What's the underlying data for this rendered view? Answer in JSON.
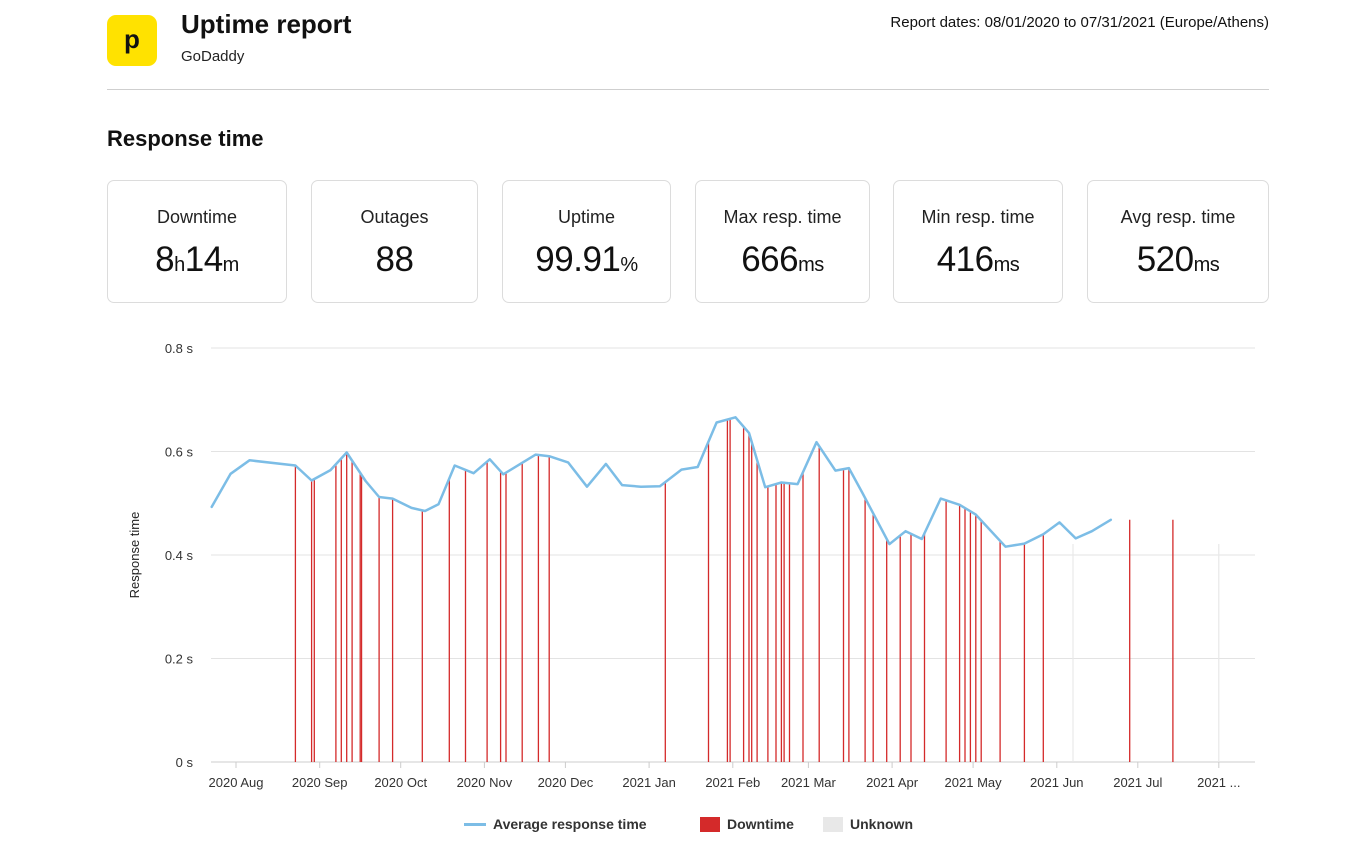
{
  "header": {
    "logo_letter": "p",
    "title": "Uptime report",
    "subtitle": "GoDaddy",
    "report_dates": "Report dates: 08/01/2020 to 07/31/2021 (Europe/Athens)"
  },
  "section_title": "Response time",
  "stats": [
    {
      "label": "Downtime",
      "parts": [
        {
          "t": "8",
          "u": false
        },
        {
          "t": "h",
          "u": true
        },
        {
          "t": "14",
          "u": false
        },
        {
          "t": "m",
          "u": true
        }
      ]
    },
    {
      "label": "Outages",
      "parts": [
        {
          "t": "88",
          "u": false
        }
      ]
    },
    {
      "label": "Uptime",
      "parts": [
        {
          "t": "99.91",
          "u": false
        },
        {
          "t": "%",
          "u": true
        }
      ]
    },
    {
      "label": "Max resp. time",
      "parts": [
        {
          "t": "666",
          "u": false
        },
        {
          "t": "ms",
          "u": true
        }
      ]
    },
    {
      "label": "Min resp. time",
      "parts": [
        {
          "t": "416",
          "u": false
        },
        {
          "t": "ms",
          "u": true
        }
      ]
    },
    {
      "label": "Avg resp. time",
      "parts": [
        {
          "t": "520",
          "u": false
        },
        {
          "t": "ms",
          "u": true
        }
      ]
    }
  ],
  "colors": {
    "line": "#7cbde6",
    "downtime": "#d42a2a",
    "unknown": "#e8e8e8",
    "grid": "#e3e3e3",
    "logo": "#ffe200"
  },
  "chart_data": {
    "type": "line",
    "ylabel": "Response time",
    "ylim": [
      0,
      0.8
    ],
    "yticks": [
      0,
      0.2,
      0.4,
      0.6,
      0.8
    ],
    "ytick_labels": [
      "0 s",
      "0.2 s",
      "0.4 s",
      "0.6 s",
      "0.8 s"
    ],
    "x_unit": "day index from 2020-08-01",
    "xlim": [
      0,
      372
    ],
    "x_ticks": [
      {
        "x": 0,
        "label": "2020 Aug"
      },
      {
        "x": 31,
        "label": "2020 Sep"
      },
      {
        "x": 61,
        "label": "2020 Oct"
      },
      {
        "x": 92,
        "label": "2020 Nov"
      },
      {
        "x": 122,
        "label": "2020 Dec"
      },
      {
        "x": 153,
        "label": "2021 Jan"
      },
      {
        "x": 184,
        "label": "2021 Feb"
      },
      {
        "x": 212,
        "label": "2021 Mar"
      },
      {
        "x": 243,
        "label": "2021 Apr"
      },
      {
        "x": 273,
        "label": "2021 May"
      },
      {
        "x": 304,
        "label": "2021 Jun"
      },
      {
        "x": 334,
        "label": "2021 Jul"
      },
      {
        "x": 364,
        "label": "2021 ..."
      }
    ],
    "series": [
      {
        "name": "Average response time",
        "points": [
          [
            -9,
            0.493
          ],
          [
            -2,
            0.557
          ],
          [
            5,
            0.583
          ],
          [
            22,
            0.573
          ],
          [
            28,
            0.544
          ],
          [
            35,
            0.564
          ],
          [
            41,
            0.598
          ],
          [
            48,
            0.543
          ],
          [
            53,
            0.512
          ],
          [
            58,
            0.509
          ],
          [
            65,
            0.491
          ],
          [
            70,
            0.485
          ],
          [
            75,
            0.498
          ],
          [
            81,
            0.573
          ],
          [
            88,
            0.558
          ],
          [
            94,
            0.585
          ],
          [
            99,
            0.556
          ],
          [
            105,
            0.575
          ],
          [
            111,
            0.594
          ],
          [
            116,
            0.591
          ],
          [
            123,
            0.579
          ],
          [
            130,
            0.532
          ],
          [
            137,
            0.576
          ],
          [
            143,
            0.535
          ],
          [
            150,
            0.532
          ],
          [
            157,
            0.533
          ],
          [
            165,
            0.565
          ],
          [
            171,
            0.57
          ],
          [
            178,
            0.656
          ],
          [
            185,
            0.666
          ],
          [
            190,
            0.636
          ],
          [
            196,
            0.531
          ],
          [
            202,
            0.54
          ],
          [
            208,
            0.537
          ],
          [
            215,
            0.618
          ],
          [
            222,
            0.563
          ],
          [
            227,
            0.568
          ],
          [
            232,
            0.52
          ],
          [
            242,
            0.421
          ],
          [
            248,
            0.446
          ],
          [
            254,
            0.431
          ],
          [
            261,
            0.509
          ],
          [
            268,
            0.497
          ],
          [
            274,
            0.478
          ],
          [
            285,
            0.416
          ],
          [
            292,
            0.422
          ],
          [
            299,
            0.44
          ],
          [
            305,
            0.463
          ],
          [
            311,
            0.432
          ],
          [
            317,
            0.446
          ],
          [
            324,
            0.468
          ]
        ]
      }
    ],
    "downtime_x": [
      22,
      28,
      29,
      37,
      39,
      41,
      43,
      46,
      46.5,
      53,
      58,
      69,
      79,
      85,
      93,
      98,
      100,
      106,
      112,
      116,
      159,
      175,
      182,
      183,
      188,
      190,
      191,
      193,
      197,
      200,
      202,
      203,
      205,
      210,
      216,
      225,
      227,
      233,
      236,
      241,
      246,
      250,
      255,
      263,
      268,
      270,
      272,
      274,
      276,
      283,
      292,
      299,
      331,
      347
    ],
    "unknown_x": [
      310,
      364
    ],
    "legend": [
      {
        "key": "line",
        "label": "Average response time"
      },
      {
        "key": "downtime",
        "label": "Downtime"
      },
      {
        "key": "unknown",
        "label": "Unknown"
      }
    ]
  }
}
